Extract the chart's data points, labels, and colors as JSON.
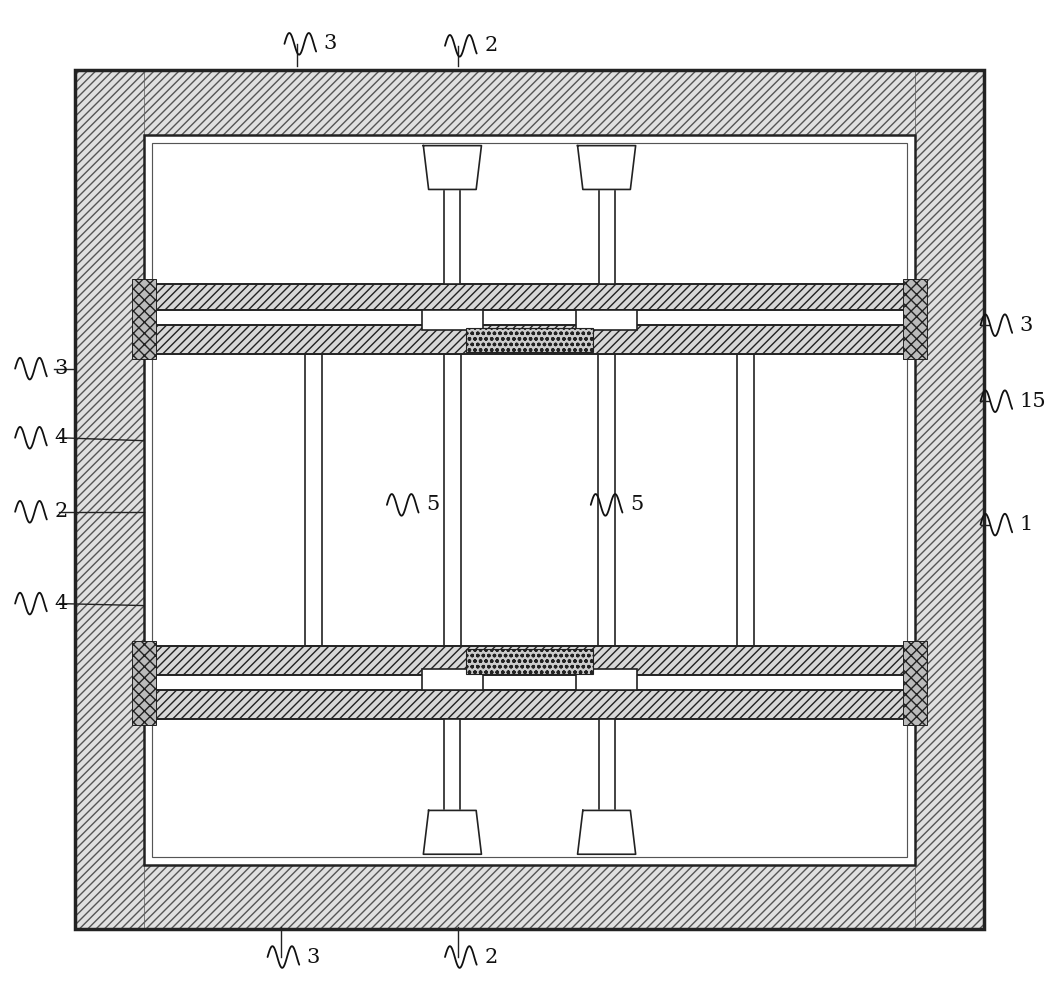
{
  "lc": "#222222",
  "lw_thick": 2.5,
  "lw_med": 1.8,
  "lw_thin": 1.2,
  "OX1": 0.07,
  "OY1": 0.06,
  "OX2": 0.93,
  "OY2": 0.93,
  "wall_t": 0.065,
  "label_fs": 15,
  "label_color": "#111111"
}
